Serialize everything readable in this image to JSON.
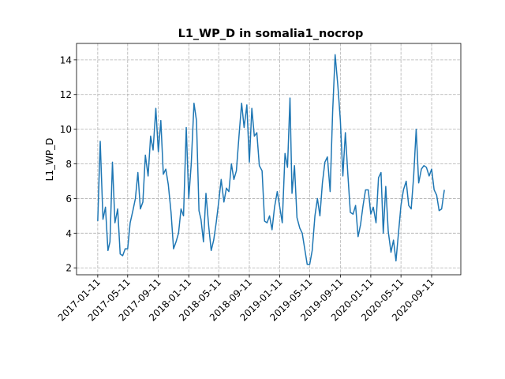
{
  "chart_data": {
    "type": "line",
    "title": "L1_WP_D in somalia1_nocrop",
    "ylabel": "L1_WP_D",
    "x": [
      "2017-01-11",
      "2017-01-21",
      "2017-02-01",
      "2017-02-11",
      "2017-02-21",
      "2017-03-01",
      "2017-03-11",
      "2017-03-21",
      "2017-04-01",
      "2017-04-11",
      "2017-04-21",
      "2017-05-01",
      "2017-05-11",
      "2017-05-21",
      "2017-06-01",
      "2017-06-11",
      "2017-06-21",
      "2017-07-01",
      "2017-07-11",
      "2017-07-21",
      "2017-08-01",
      "2017-08-11",
      "2017-08-21",
      "2017-09-01",
      "2017-09-11",
      "2017-09-21",
      "2017-10-01",
      "2017-10-11",
      "2017-10-21",
      "2017-11-01",
      "2017-11-11",
      "2017-11-21",
      "2017-12-01",
      "2017-12-11",
      "2017-12-21",
      "2018-01-01",
      "2018-01-11",
      "2018-01-21",
      "2018-02-01",
      "2018-02-11",
      "2018-02-21",
      "2018-03-01",
      "2018-03-11",
      "2018-03-21",
      "2018-04-01",
      "2018-04-11",
      "2018-04-21",
      "2018-05-01",
      "2018-05-11",
      "2018-05-21",
      "2018-06-01",
      "2018-06-11",
      "2018-06-21",
      "2018-07-01",
      "2018-07-11",
      "2018-07-21",
      "2018-08-01",
      "2018-08-11",
      "2018-08-21",
      "2018-09-01",
      "2018-09-11",
      "2018-09-21",
      "2018-10-01",
      "2018-10-11",
      "2018-10-21",
      "2018-11-01",
      "2018-11-11",
      "2018-11-21",
      "2018-12-01",
      "2018-12-11",
      "2018-12-21",
      "2019-01-01",
      "2019-01-11",
      "2019-01-21",
      "2019-02-01",
      "2019-02-11",
      "2019-02-21",
      "2019-03-01",
      "2019-03-11",
      "2019-03-21",
      "2019-04-01",
      "2019-04-11",
      "2019-04-21",
      "2019-05-01",
      "2019-05-11",
      "2019-05-21",
      "2019-06-01",
      "2019-06-11",
      "2019-06-21",
      "2019-07-01",
      "2019-07-11",
      "2019-07-21",
      "2019-08-01",
      "2019-08-11",
      "2019-08-21",
      "2019-09-01",
      "2019-09-11",
      "2019-09-21",
      "2019-10-01",
      "2019-10-11",
      "2019-10-21",
      "2019-11-01",
      "2019-11-11",
      "2019-11-21",
      "2019-12-01",
      "2019-12-11",
      "2019-12-21",
      "2020-01-01",
      "2020-01-11",
      "2020-01-21",
      "2020-02-01",
      "2020-02-11",
      "2020-02-21",
      "2020-03-01",
      "2020-03-11",
      "2020-03-21",
      "2020-04-01",
      "2020-04-11",
      "2020-04-21",
      "2020-05-01",
      "2020-05-11",
      "2020-05-21",
      "2020-06-01",
      "2020-06-11",
      "2020-06-21",
      "2020-07-01",
      "2020-07-11",
      "2020-07-21",
      "2020-08-01",
      "2020-08-11",
      "2020-08-21",
      "2020-09-01",
      "2020-09-11",
      "2020-09-21",
      "2020-10-01",
      "2020-10-11",
      "2020-10-21",
      "2020-11-01"
    ],
    "series": [
      {
        "name": "L1_WP_D",
        "color": "#1f77b4",
        "values": [
          4.7,
          9.3,
          4.8,
          5.5,
          3.0,
          3.5,
          8.1,
          4.6,
          5.4,
          2.8,
          2.7,
          3.1,
          3.1,
          4.6,
          5.3,
          6.0,
          7.5,
          5.4,
          5.8,
          8.5,
          7.3,
          9.6,
          8.8,
          11.2,
          8.7,
          10.5,
          7.4,
          7.7,
          6.8,
          5.2,
          3.1,
          3.5,
          4.0,
          5.4,
          5.0,
          10.1,
          6.0,
          8.0,
          11.5,
          10.5,
          5.3,
          4.8,
          3.5,
          6.3,
          4.4,
          3.0,
          3.6,
          4.6,
          5.8,
          7.1,
          5.8,
          6.6,
          6.4,
          8.0,
          7.1,
          7.6,
          9.7,
          11.5,
          10.1,
          11.4,
          8.1,
          11.2,
          9.6,
          9.8,
          7.9,
          7.6,
          4.7,
          4.6,
          5.0,
          4.2,
          5.5,
          6.4,
          5.5,
          4.6,
          8.6,
          7.8,
          11.8,
          6.3,
          7.9,
          4.9,
          4.3,
          4.0,
          3.1,
          2.2,
          2.2,
          3.0,
          5.0,
          6.0,
          5.0,
          6.9,
          8.1,
          8.4,
          6.4,
          11.0,
          14.3,
          12.5,
          10.5,
          7.3,
          9.8,
          7.4,
          5.2,
          5.1,
          5.6,
          3.8,
          4.5,
          5.6,
          6.5,
          6.5,
          5.1,
          5.5,
          4.6,
          7.2,
          7.5,
          4.0,
          6.7,
          4.1,
          2.9,
          3.6,
          2.4,
          4.0,
          5.6,
          6.5,
          7.0,
          5.6,
          5.4,
          7.3,
          10.0,
          6.9,
          7.7,
          7.9,
          7.8,
          7.3,
          7.7,
          6.5,
          6.2,
          5.3,
          5.4,
          6.5
        ]
      }
    ],
    "xlim": [
      "2016-10-18",
      "2021-01-06"
    ],
    "xticks": [
      "2017-01-11",
      "2017-05-11",
      "2017-09-11",
      "2018-01-11",
      "2018-05-11",
      "2018-09-11",
      "2019-01-11",
      "2019-05-11",
      "2019-09-11",
      "2020-01-11",
      "2020-05-11",
      "2020-09-11"
    ],
    "ylim": [
      1.6,
      14.95
    ],
    "yticks": [
      2,
      4,
      6,
      8,
      10,
      12,
      14
    ],
    "grid": true
  }
}
